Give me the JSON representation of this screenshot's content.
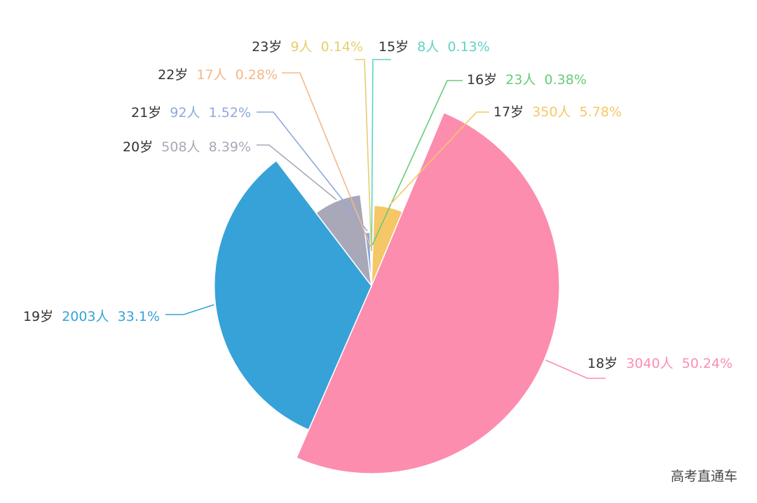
{
  "chart_data": {
    "type": "pie",
    "variant": "nightingale-rose",
    "label_format": "{name}  {count}  {percent}",
    "series": [
      {
        "name": "15岁",
        "count_label": "8人",
        "value": 8,
        "percent_label": "0.13%",
        "color": "#5fd3c3"
      },
      {
        "name": "16岁",
        "count_label": "23人",
        "value": 23,
        "percent_label": "0.38%",
        "color": "#66cc7a"
      },
      {
        "name": "17岁",
        "count_label": "350人",
        "value": 350,
        "percent_label": "5.78%",
        "color": "#f6c766"
      },
      {
        "name": "18岁",
        "count_label": "3040人",
        "value": 3040,
        "percent_label": "50.24%",
        "color": "#fc8daf"
      },
      {
        "name": "19岁",
        "count_label": "2003人",
        "value": 2003,
        "percent_label": "33.1%",
        "color": "#36a2d8"
      },
      {
        "name": "20岁",
        "count_label": "508人",
        "value": 508,
        "percent_label": "8.39%",
        "color": "#a9a8b8"
      },
      {
        "name": "21岁",
        "count_label": "92人",
        "value": 92,
        "percent_label": "1.52%",
        "color": "#8fa8de"
      },
      {
        "name": "22岁",
        "count_label": "17人",
        "value": 17,
        "percent_label": "0.28%",
        "color": "#f3b889"
      },
      {
        "name": "23岁",
        "count_label": "9人",
        "value": 9,
        "percent_label": "0.14%",
        "color": "#e5cf6d"
      }
    ],
    "label_color": "#333333"
  },
  "watermark": "高考直通车"
}
